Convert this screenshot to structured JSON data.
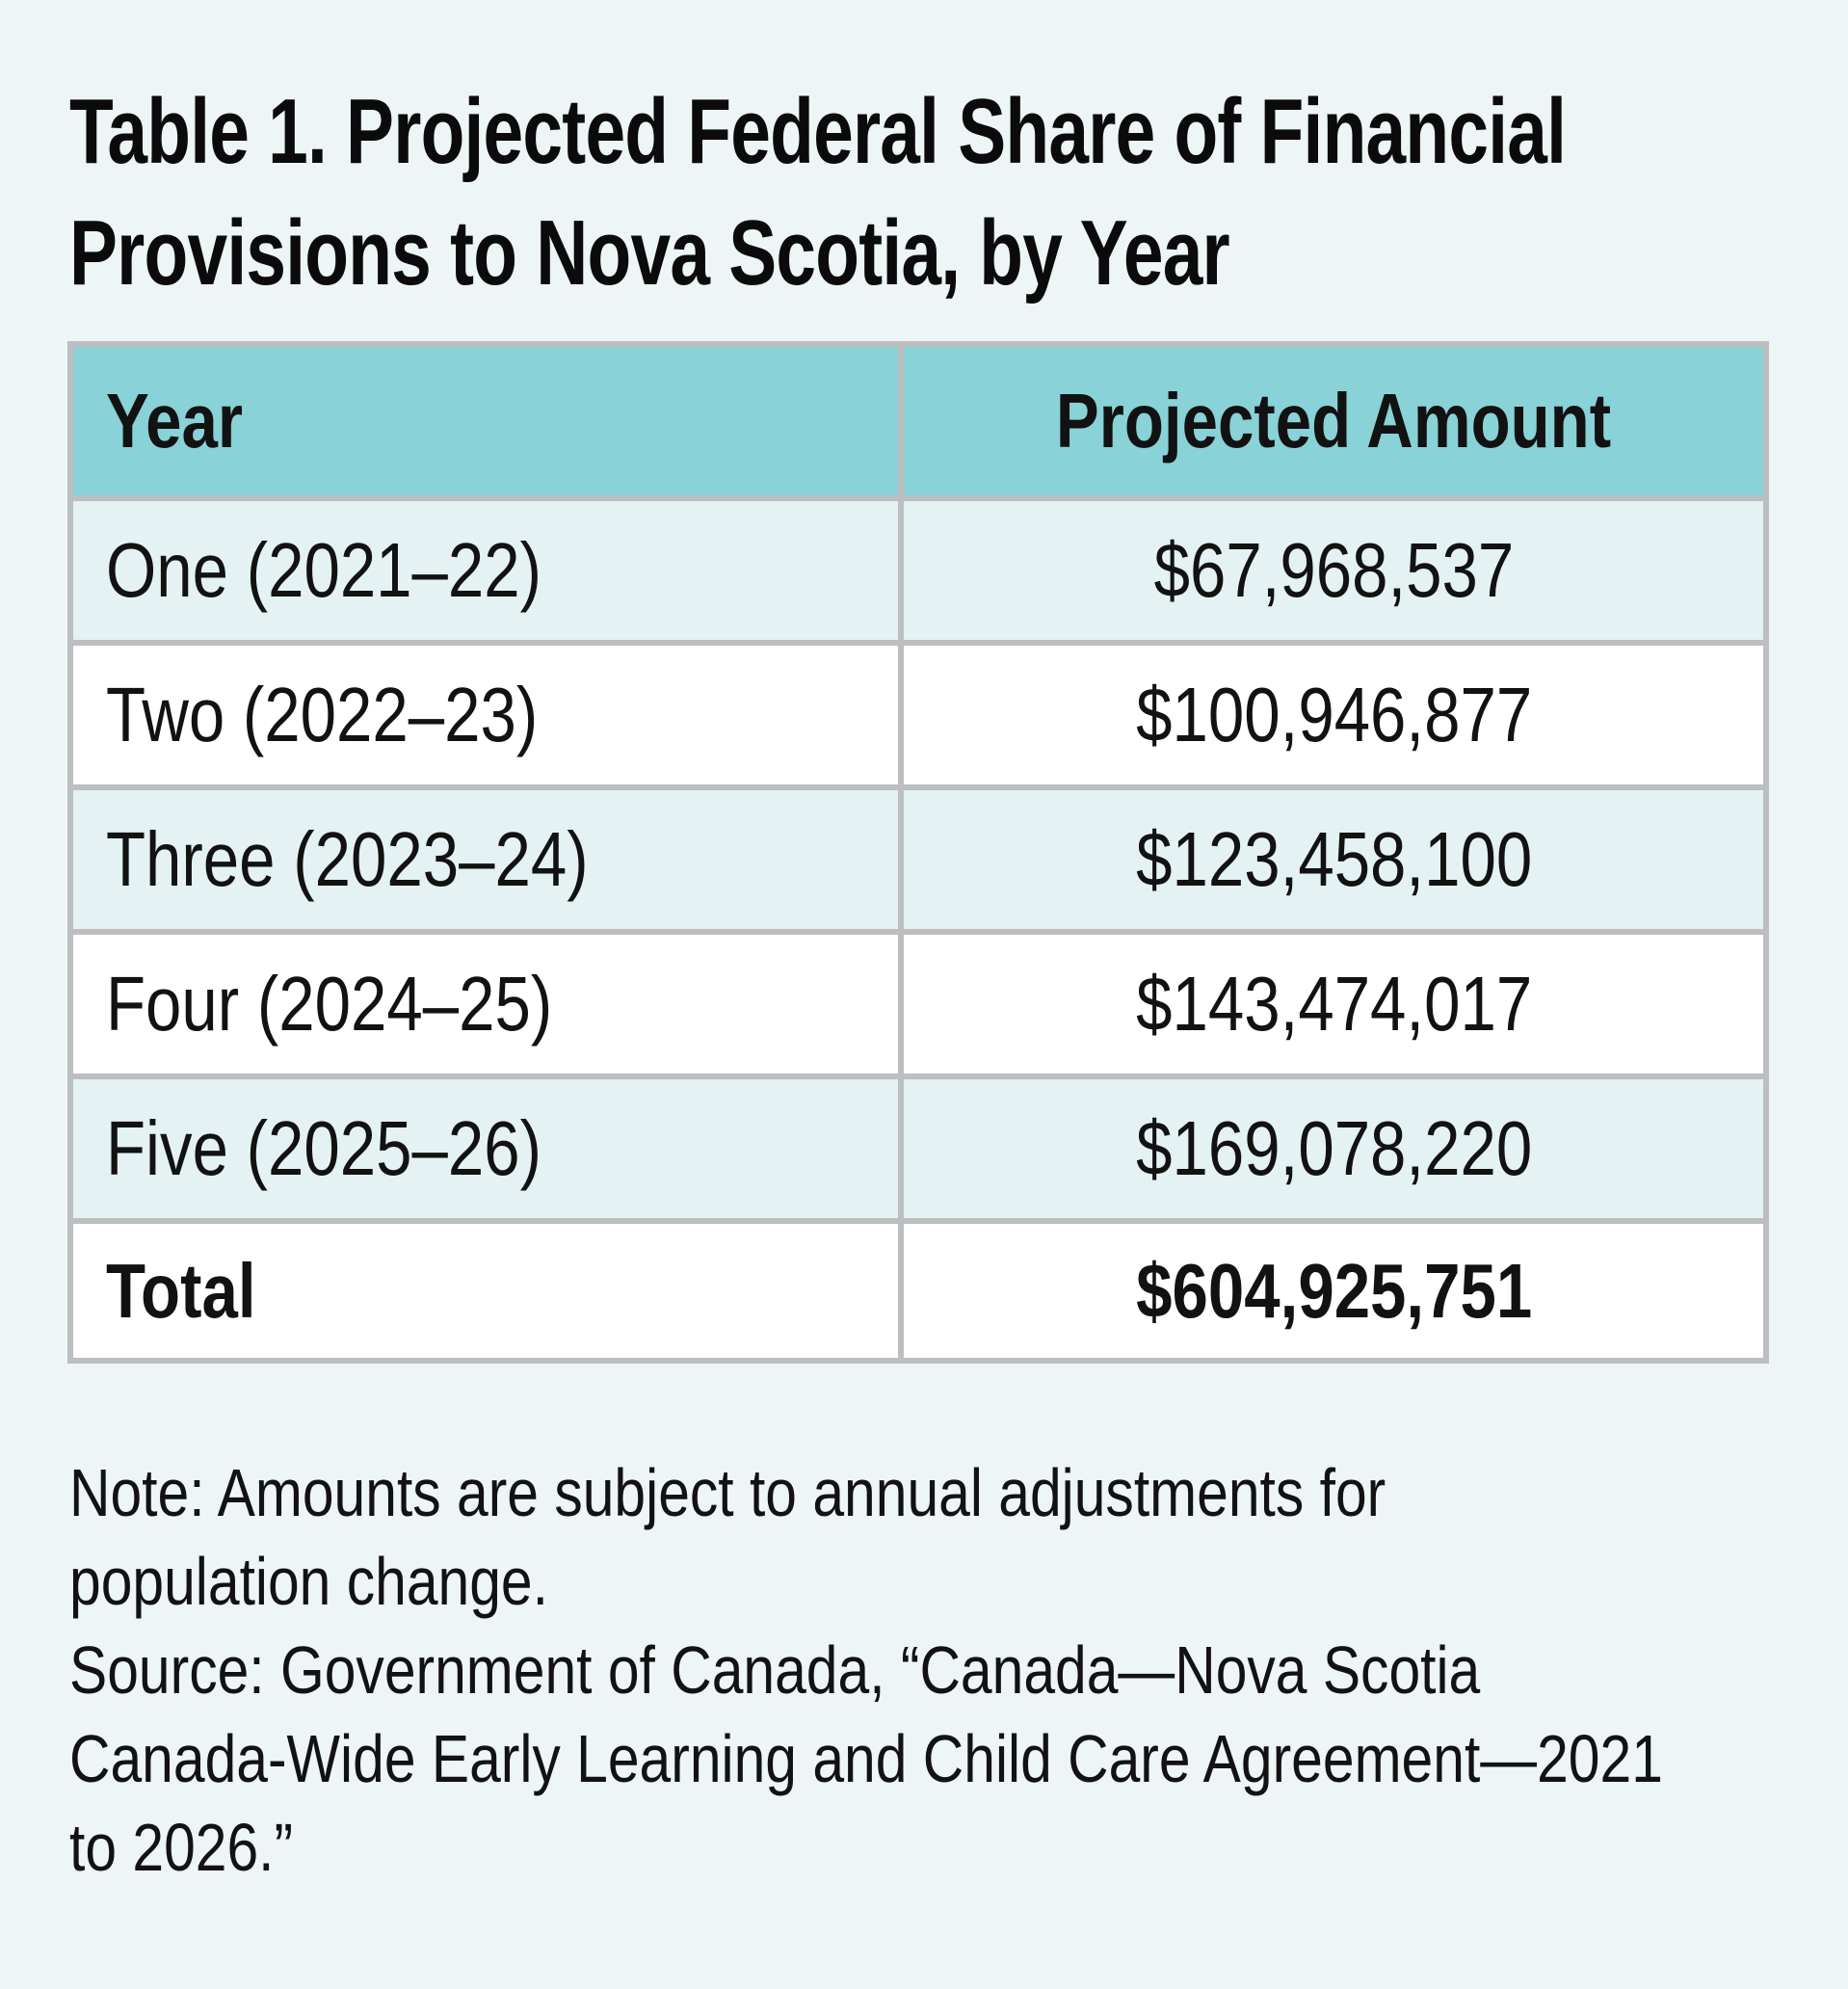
{
  "theme": {
    "page_bg": "#edf5f7",
    "header_bg": "#89d2d7",
    "row_alt_bg": "#e4f2f4",
    "row_bg": "#ffffff",
    "border_color": "#bcbec0",
    "text_color": "#121212"
  },
  "title": {
    "line1": "Table 1. Projected Federal Share of Financial",
    "line2": "Provisions to Nova Scotia, by Year"
  },
  "table": {
    "columns": [
      {
        "label": "Year"
      },
      {
        "label": "Projected Amount"
      }
    ],
    "rows": [
      {
        "year": "One (2021–22)",
        "amount": "$67,968,537"
      },
      {
        "year": "Two (2022–23)",
        "amount": "$100,946,877"
      },
      {
        "year": "Three (2023–24)",
        "amount": "$123,458,100"
      },
      {
        "year": "Four (2024–25)",
        "amount": "$143,474,017"
      },
      {
        "year": "Five (2025–26)",
        "amount": "$169,078,220"
      }
    ],
    "total": {
      "label": "Total",
      "amount": "$604,925,751"
    }
  },
  "footnote": {
    "lines": [
      "Note: Amounts are subject to annual adjustments for",
      "population change.",
      "Source: Government of Canada, “Canada—Nova Scotia",
      "Canada-Wide Early Learning and Child Care Agreement—2021",
      "to 2026.”"
    ]
  },
  "chart_data": {
    "type": "table",
    "title": "Table 1. Projected Federal Share of Financial Provisions to Nova Scotia, by Year",
    "columns": [
      "Year",
      "Projected Amount"
    ],
    "rows": [
      [
        "One (2021–22)",
        "$67,968,537"
      ],
      [
        "Two (2022–23)",
        "$100,946,877"
      ],
      [
        "Three (2023–24)",
        "$123,458,100"
      ],
      [
        "Four (2024–25)",
        "$143,474,017"
      ],
      [
        "Five (2025–26)",
        "$169,078,220"
      ],
      [
        "Total",
        "$604,925,751"
      ]
    ],
    "values": [
      67968537,
      100946877,
      123458100,
      143474017,
      169078220
    ],
    "total": 604925751,
    "note": "Note: Amounts are subject to annual adjustments for population change.",
    "source": "Source: Government of Canada, “Canada—Nova Scotia Canada-Wide Early Learning and Child Care Agreement—2021 to 2026.”"
  }
}
